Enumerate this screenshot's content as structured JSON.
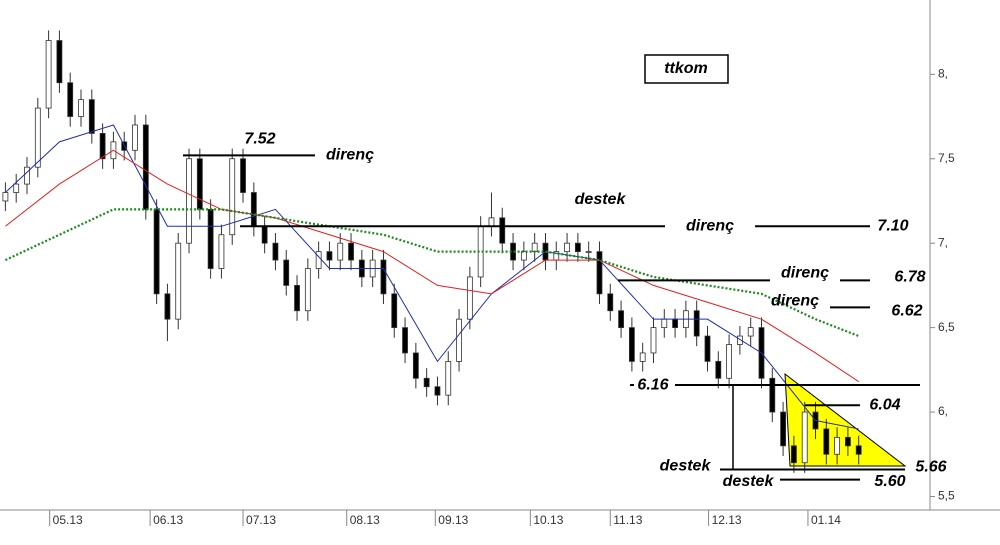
{
  "chart_data": {
    "type": "candlestick",
    "title": "ttkom",
    "xlim": [
      -0.5,
      85.6
    ],
    "xticks": [
      {
        "value": 4.1,
        "label": "05.13"
      },
      {
        "value": 13.4,
        "label": "06.13"
      },
      {
        "value": 22,
        "label": "07.13"
      },
      {
        "value": 31.6,
        "label": "08.13"
      },
      {
        "value": 39.8,
        "label": "09.13"
      },
      {
        "value": 48.6,
        "label": "10.13"
      },
      {
        "value": 56,
        "label": "11.13"
      },
      {
        "value": 65.1,
        "label": "12.13"
      },
      {
        "value": 74.3,
        "label": "01.14"
      }
    ],
    "ylim": [
      5.42,
      8.44
    ],
    "yticks": [
      {
        "value": 8,
        "label": "8,"
      },
      {
        "value": 7.5,
        "label": "7,5"
      },
      {
        "value": 7,
        "label": "7,"
      },
      {
        "value": 6.5,
        "label": "6,5"
      },
      {
        "value": 6,
        "label": "6,"
      },
      {
        "value": 5.5,
        "label": "5,5"
      }
    ],
    "up_color": "#ffffff",
    "down_color": "#000000",
    "open": [
      7.25,
      7.3,
      7.35,
      7.45,
      7.8,
      8.2,
      7.95,
      7.75,
      7.85,
      7.65,
      7.5,
      7.6,
      7.55,
      7.7,
      7.2,
      6.7,
      6.55,
      7.0,
      7.5,
      7.2,
      6.85,
      7.05,
      7.5,
      7.3,
      7.1,
      7.0,
      6.9,
      6.75,
      6.6,
      6.85,
      6.95,
      6.9,
      7.0,
      6.9,
      6.8,
      6.9,
      6.7,
      6.5,
      6.35,
      6.2,
      6.15,
      6.1,
      6.3,
      6.55,
      6.8,
      7.1,
      7.15,
      7.0,
      6.9,
      6.95,
      7.0,
      6.9,
      6.95,
      7.0,
      6.95,
      6.95,
      6.7,
      6.6,
      6.5,
      6.3,
      6.35,
      6.5,
      6.55,
      6.5,
      6.6,
      6.45,
      6.3,
      6.2,
      6.4,
      6.45,
      6.5,
      6.2,
      6.0,
      5.8,
      5.7,
      6.0,
      5.9,
      5.75,
      5.85,
      5.8
    ],
    "high": [
      7.36,
      7.41,
      7.51,
      7.86,
      8.26,
      8.26,
      8.01,
      7.91,
      7.91,
      7.71,
      7.66,
      7.66,
      7.76,
      7.76,
      7.26,
      6.76,
      7.06,
      7.56,
      7.56,
      7.26,
      7.11,
      7.56,
      7.56,
      7.36,
      7.16,
      7.06,
      6.96,
      6.81,
      6.91,
      7.01,
      7.01,
      7.06,
      7.06,
      6.96,
      6.96,
      6.96,
      6.76,
      6.56,
      6.41,
      6.26,
      6.21,
      6.36,
      6.61,
      6.86,
      7.16,
      7.3,
      7.21,
      7.06,
      7.01,
      7.06,
      7.06,
      7.01,
      7.06,
      7.06,
      7.01,
      7.01,
      6.76,
      6.66,
      6.56,
      6.41,
      6.56,
      6.61,
      6.61,
      6.66,
      6.66,
      6.51,
      6.36,
      6.46,
      6.51,
      6.56,
      6.56,
      6.26,
      6.06,
      5.86,
      6.06,
      6.06,
      5.96,
      5.91,
      5.91,
      5.86
    ],
    "low": [
      7.19,
      7.24,
      7.29,
      7.39,
      7.74,
      7.89,
      7.69,
      7.69,
      7.59,
      7.44,
      7.44,
      7.49,
      7.49,
      7.14,
      6.64,
      6.42,
      6.49,
      6.94,
      7.14,
      6.79,
      6.79,
      6.99,
      7.24,
      7.04,
      6.94,
      6.84,
      6.69,
      6.54,
      6.54,
      6.79,
      6.84,
      6.84,
      6.84,
      6.74,
      6.74,
      6.64,
      6.44,
      6.29,
      6.14,
      6.09,
      6.04,
      6.04,
      6.24,
      6.49,
      6.74,
      7.04,
      6.94,
      6.84,
      6.84,
      6.89,
      6.84,
      6.84,
      6.89,
      6.89,
      6.89,
      6.64,
      6.54,
      6.44,
      6.24,
      6.24,
      6.29,
      6.44,
      6.44,
      6.44,
      6.39,
      6.24,
      6.14,
      6.14,
      6.34,
      6.39,
      6.14,
      5.94,
      5.74,
      5.64,
      5.64,
      5.84,
      5.69,
      5.69,
      5.74,
      5.69
    ],
    "close": [
      7.3,
      7.35,
      7.45,
      7.8,
      8.2,
      7.95,
      7.75,
      7.85,
      7.65,
      7.5,
      7.6,
      7.55,
      7.7,
      7.2,
      6.7,
      6.55,
      7.0,
      7.5,
      7.2,
      6.85,
      7.05,
      7.5,
      7.3,
      7.1,
      7.0,
      6.9,
      6.75,
      6.6,
      6.85,
      6.95,
      6.9,
      7.0,
      6.9,
      6.8,
      6.9,
      6.7,
      6.5,
      6.35,
      6.2,
      6.15,
      6.1,
      6.3,
      6.55,
      6.8,
      7.1,
      7.15,
      7.0,
      6.9,
      6.95,
      7.0,
      6.9,
      6.95,
      7.0,
      6.95,
      6.95,
      6.7,
      6.6,
      6.5,
      6.3,
      6.35,
      6.5,
      6.55,
      6.5,
      6.6,
      6.45,
      6.3,
      6.2,
      6.4,
      6.45,
      6.5,
      6.2,
      6.0,
      5.8,
      5.7,
      6.0,
      5.9,
      5.75,
      5.85,
      5.8,
      5.75
    ],
    "lines": [
      {
        "color": "#1f2fb0",
        "style": "solid",
        "x": [
          0,
          5,
          10,
          15,
          20,
          25,
          30,
          35,
          40,
          45,
          50,
          55,
          60,
          65,
          70,
          75,
          79
        ],
        "values": [
          7.3,
          7.6,
          7.7,
          7.1,
          7.1,
          7.2,
          6.85,
          6.85,
          6.3,
          6.7,
          6.95,
          6.9,
          6.55,
          6.55,
          6.35,
          5.95,
          5.9
        ]
      },
      {
        "color": "#e02020",
        "style": "solid",
        "x": [
          0,
          5,
          10,
          15,
          20,
          25,
          30,
          35,
          40,
          45,
          50,
          55,
          60,
          65,
          70,
          75,
          79
        ],
        "values": [
          7.1,
          7.35,
          7.55,
          7.35,
          7.2,
          7.15,
          7.05,
          6.95,
          6.75,
          6.7,
          6.9,
          6.9,
          6.75,
          6.65,
          6.55,
          6.35,
          6.18
        ]
      },
      {
        "color": "#1a8a1a",
        "style": "dotted",
        "x": [
          0,
          5,
          10,
          15,
          20,
          25,
          30,
          35,
          40,
          45,
          50,
          55,
          60,
          65,
          70,
          75,
          79
        ],
        "values": [
          6.9,
          7.05,
          7.2,
          7.2,
          7.2,
          7.15,
          7.1,
          7.05,
          6.95,
          6.95,
          6.95,
          6.9,
          6.8,
          6.75,
          6.7,
          6.55,
          6.45
        ]
      }
    ],
    "levels": [
      {
        "value": 7.52,
        "text": "direnç"
      },
      {
        "value": 7.1,
        "label": "7.10",
        "text": "direnç"
      },
      {
        "value": 6.78,
        "text": "direnç"
      },
      {
        "value": 6.62,
        "text": "direnç"
      },
      {
        "value": 6.16
      },
      {
        "value": 6.04
      },
      {
        "value": 5.66,
        "text": "destek"
      },
      {
        "value": 5.6,
        "label": "5.60",
        "text": "destek"
      }
    ],
    "note": "destek"
  }
}
